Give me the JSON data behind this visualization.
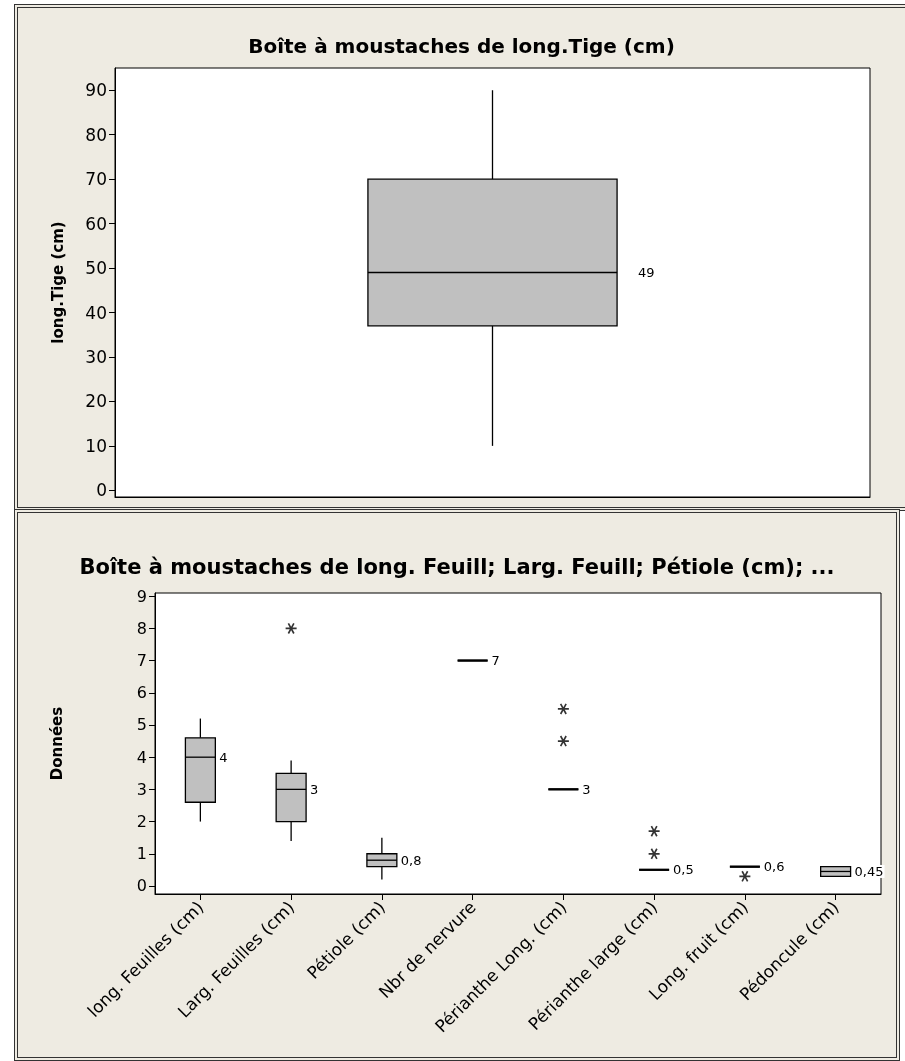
{
  "chart_data": [
    {
      "type": "box",
      "title": "Boîte à moustaches de long.Tige (cm)",
      "ylabel": "long.Tige (cm)",
      "categories": [
        null
      ],
      "series": [
        {
          "colors": [
            "#c0c0c0"
          ],
          "boxes": [
            {
              "low": 10,
              "q1": 37,
              "median": 49,
              "q3": 70,
              "high": 90
            }
          ],
          "value_labels": [
            "49"
          ]
        }
      ],
      "ylim": [
        -1.5,
        95
      ],
      "yticks": [
        0,
        10,
        20,
        30,
        40,
        50,
        60,
        70,
        80,
        90
      ],
      "tick_labels": "y"
    },
    {
      "type": "box",
      "title": "Boîte à moustaches de long. Feuill; Larg. Feuill; Pétiole (cm); ...",
      "ylabel": "Données",
      "categories": [
        "long. Feuilles (cm)",
        "Larg. Feuilles (cm)",
        "Pétiole (cm)",
        "Nbr de nervure",
        "Périanthe Long. (cm)",
        "Périanthe large (cm)",
        "Long. fruit (cm)",
        "Pédoncule (cm)"
      ],
      "series": [
        {
          "colors": [
            "#c0c0c0",
            "#c0c0c0",
            "#c0c0c0",
            "#000000",
            "#000000",
            "#000000",
            "#000000",
            "#c0c0c0"
          ],
          "boxes": [
            {
              "low": 2,
              "q1": 2.6,
              "median": 4,
              "q3": 4.6,
              "high": 5.2
            },
            {
              "low": 1.4,
              "q1": 2,
              "median": 3,
              "q3": 3.5,
              "high": 3.9,
              "outliers": [
                8
              ]
            },
            {
              "low": 0.2,
              "q1": 0.6,
              "median": 0.8,
              "q3": 1,
              "high": 1.5
            },
            {
              "low": 7,
              "q1": 7,
              "median": 7,
              "q3": 7,
              "high": 7
            },
            {
              "low": 3,
              "q1": 3,
              "median": 3,
              "q3": 3,
              "high": 3,
              "outliers": [
                5.5,
                4.5
              ]
            },
            {
              "low": 0.5,
              "q1": 0.5,
              "median": 0.5,
              "q3": 0.5,
              "high": 0.5,
              "outliers": [
                1.7,
                1
              ]
            },
            {
              "low": 0.6,
              "q1": 0.6,
              "median": 0.6,
              "q3": 0.6,
              "high": 0.6,
              "outliers": [
                0.3
              ]
            },
            {
              "low": 0.3,
              "q1": 0.3,
              "median": 0.45,
              "q3": 0.6,
              "high": 0.6
            }
          ],
          "value_labels": [
            "4",
            "3",
            "0,8",
            "7",
            "3",
            "0,5",
            "0,6",
            "0,45"
          ]
        }
      ],
      "ylim": [
        -0.25,
        9.1
      ],
      "yticks": [
        0,
        1,
        2,
        3,
        4,
        5,
        6,
        7,
        8,
        9
      ],
      "marker": "star"
    }
  ]
}
